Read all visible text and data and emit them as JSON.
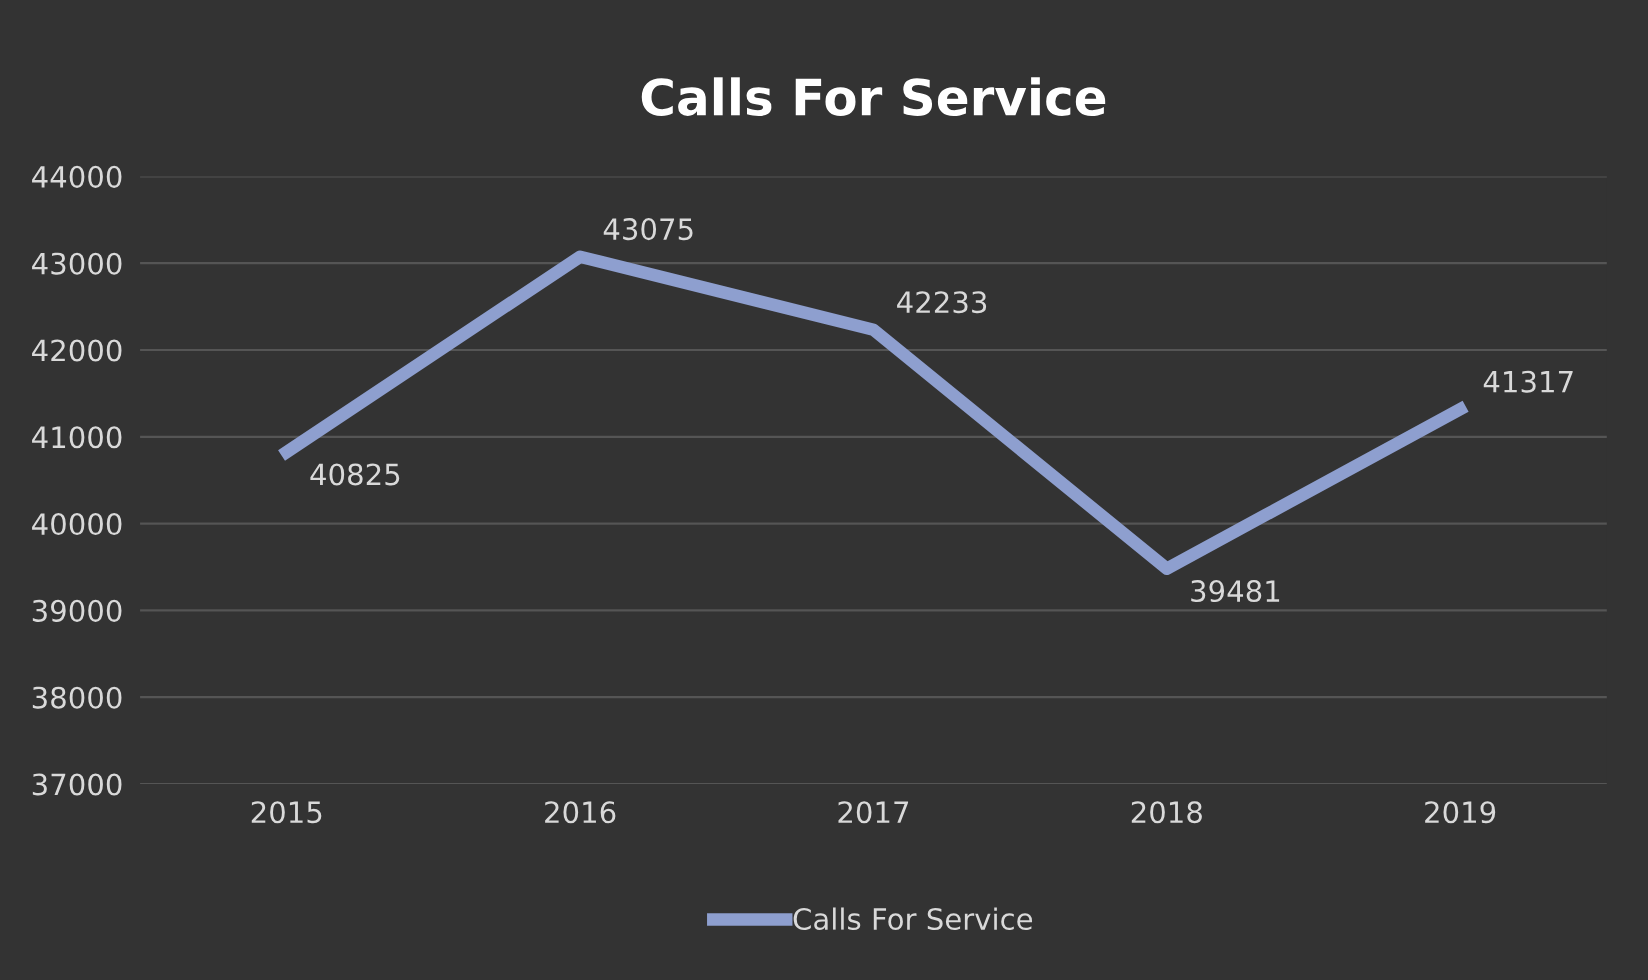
{
  "chart_data": {
    "type": "line",
    "title": "Calls For Service",
    "categories": [
      "2015",
      "2016",
      "2017",
      "2018",
      "2019"
    ],
    "series": [
      {
        "name": "Calls For Service",
        "color": "#8e9fcf",
        "values": [
          40825,
          43075,
          42233,
          39481,
          41317
        ]
      }
    ],
    "ylim": [
      37000,
      44000
    ],
    "yticks": [
      37000,
      38000,
      39000,
      40000,
      41000,
      42000,
      43000,
      44000
    ],
    "grid": "y",
    "legend": "bottom",
    "data_labels": true,
    "marker": "none",
    "line_style": "solid"
  }
}
